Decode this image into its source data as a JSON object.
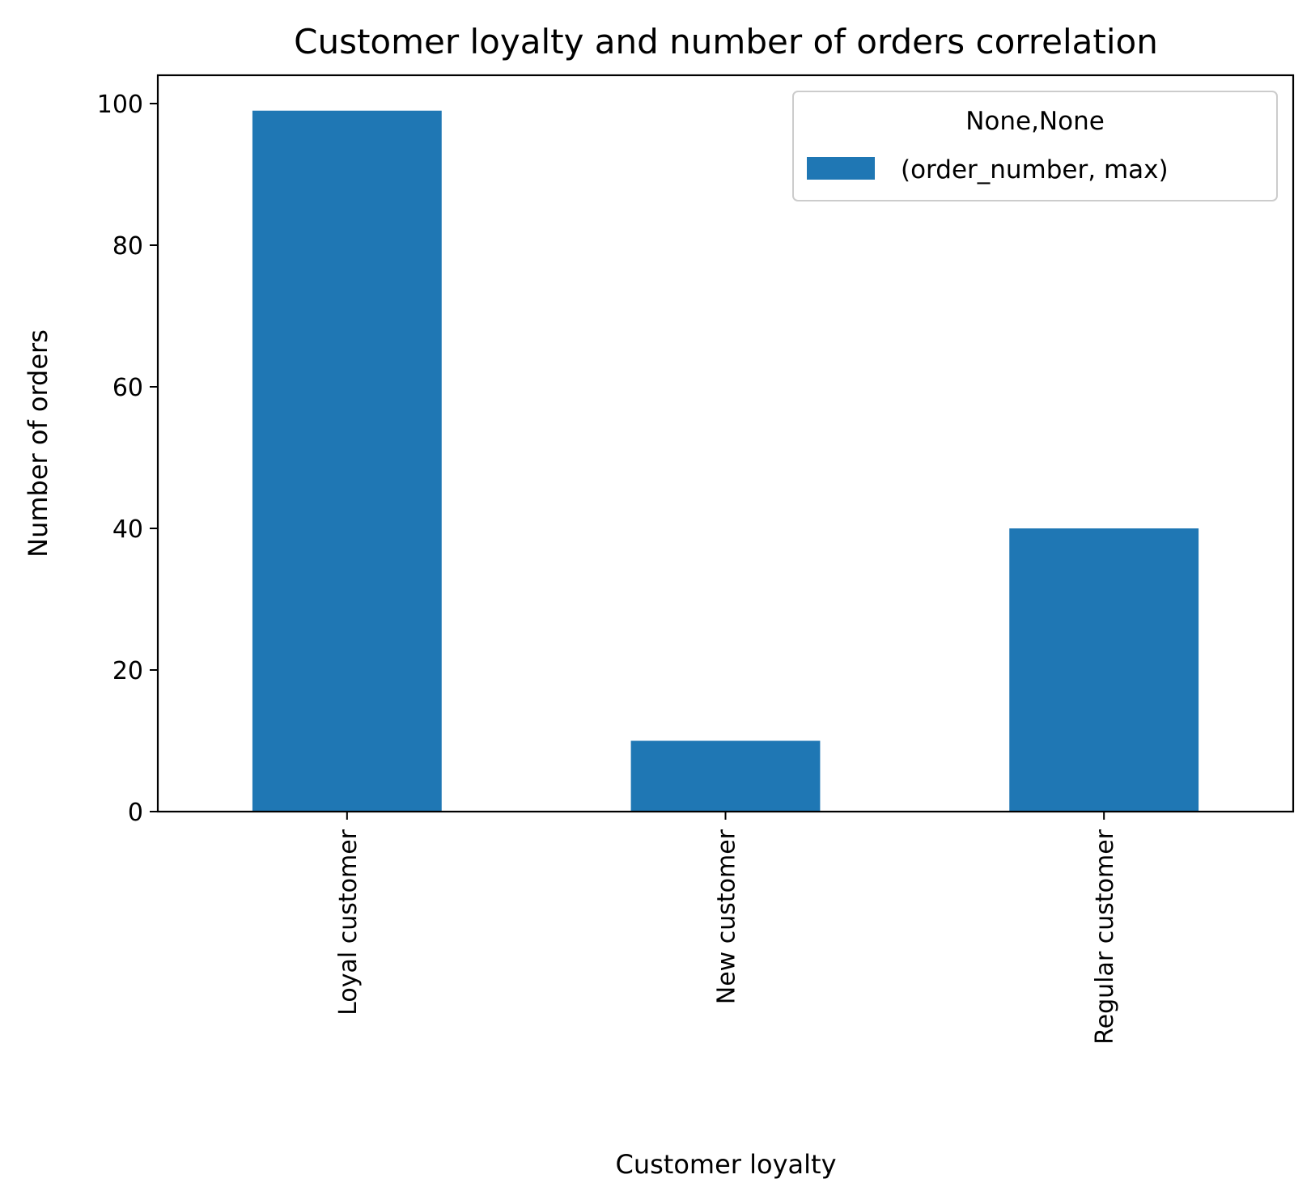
{
  "chart_data": {
    "type": "bar",
    "title": "Customer loyalty and number of orders correlation",
    "xlabel": "Customer loyalty",
    "ylabel": "Number of orders",
    "categories": [
      "Loyal customer",
      "New customer",
      "Regular customer"
    ],
    "series": [
      {
        "name": "(order_number, max)",
        "values": [
          99,
          10,
          40
        ],
        "color": "#1f77b4"
      }
    ],
    "ylim": [
      0,
      104
    ],
    "yticks": [
      0,
      20,
      40,
      60,
      80,
      100
    ],
    "grid": false,
    "legend": {
      "title": "None,None",
      "placement": "top-right"
    },
    "xtick_rotation": "vertical"
  }
}
